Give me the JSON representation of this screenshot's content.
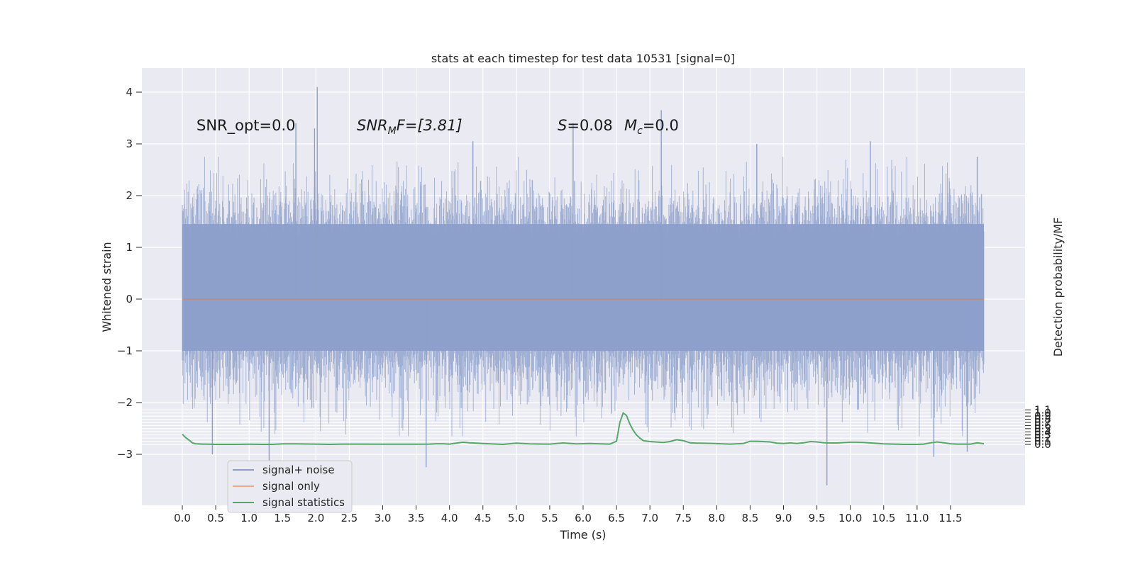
{
  "chart_data": {
    "type": "line",
    "title": "stats at each timestep for test data 10531 [signal=0]",
    "xlabel": "Time (s)",
    "ylabel": "Whitened strain",
    "y2label": "Detection probability/MF",
    "xlim": [
      -0.6,
      12.6
    ],
    "ylim": [
      -4.0,
      4.45
    ],
    "y2lim": [
      -0.2,
      1.195
    ],
    "x_ticks": [
      "0.0",
      "0.5",
      "1.0",
      "1.5",
      "2.0",
      "2.5",
      "3.0",
      "3.5",
      "4.0",
      "4.5",
      "5.0",
      "5.5",
      "6.0",
      "6.5",
      "7.0",
      "7.5",
      "8.0",
      "8.5",
      "9.0",
      "9.5",
      "10.0",
      "10.5",
      "11.0",
      "11.5"
    ],
    "x_tick_values": [
      0.0,
      0.5,
      1.0,
      1.5,
      2.0,
      2.5,
      3.0,
      3.5,
      4.0,
      4.5,
      5.0,
      5.5,
      6.0,
      6.5,
      7.0,
      7.5,
      8.0,
      8.5,
      9.0,
      9.5,
      10.0,
      10.5,
      11.0,
      11.5
    ],
    "y_ticks": [
      "4",
      "3",
      "2",
      "1",
      "0",
      "−1",
      "−2",
      "−3"
    ],
    "y_tick_values": [
      4,
      3,
      2,
      1,
      0,
      -1,
      -2,
      -3
    ],
    "y2_ticks": [
      "1.1",
      "1.0",
      "0.9",
      "0.8",
      "0.7",
      "0.6",
      "0.5",
      "0.4",
      "0.3",
      "0.2",
      "0.1",
      "0.0"
    ],
    "y2_tick_values": [
      1.1,
      1.0,
      0.9,
      0.8,
      0.7,
      0.6,
      0.5,
      0.4,
      0.3,
      0.2,
      0.1,
      0.0
    ],
    "grid": true,
    "legend_position": "lower-left",
    "series": [
      {
        "name": "signal+ noise",
        "axis": "left",
        "color": "#8c9fca",
        "x_range": [
          0.0,
          12.0
        ],
        "envelope_core": [
          -1.0,
          1.45
        ],
        "peaks": [
          {
            "x": 1.7,
            "y": 3.4
          },
          {
            "x": 1.98,
            "y": 3.3
          },
          {
            "x": 2.02,
            "y": 4.1
          },
          {
            "x": 4.35,
            "y": 3.05
          },
          {
            "x": 5.85,
            "y": 3.4
          },
          {
            "x": 7.17,
            "y": 3.65
          },
          {
            "x": 8.6,
            "y": 3.0
          },
          {
            "x": 10.3,
            "y": 3.05
          },
          {
            "x": 11.9,
            "y": 2.75
          },
          {
            "x": 1.3,
            "y": -3.4
          },
          {
            "x": 9.65,
            "y": -3.6
          },
          {
            "x": 3.65,
            "y": -3.25
          },
          {
            "x": 0.45,
            "y": -3.0
          },
          {
            "x": 11.25,
            "y": -3.05
          },
          {
            "x": 11.75,
            "y": -2.95
          }
        ]
      },
      {
        "name": "signal only",
        "axis": "left",
        "color": "#dd8452",
        "x": [
          0.0,
          12.0
        ],
        "y": [
          0.0,
          0.0
        ]
      },
      {
        "name": "signal statistics",
        "axis": "right",
        "color": "#55a868",
        "x": [
          0.0,
          0.05,
          0.1,
          0.15,
          0.2,
          0.3,
          0.35,
          0.5,
          0.8,
          1.0,
          1.2,
          1.35,
          1.5,
          1.7,
          2.0,
          2.2,
          2.4,
          2.6,
          3.0,
          3.2,
          3.5,
          3.7,
          3.8,
          3.9,
          4.0,
          4.1,
          4.2,
          4.3,
          4.5,
          4.8,
          4.9,
          5.0,
          5.2,
          5.5,
          5.7,
          5.9,
          6.1,
          6.4,
          6.5,
          6.55,
          6.6,
          6.65,
          6.7,
          6.75,
          6.8,
          6.85,
          6.9,
          7.0,
          7.2,
          7.3,
          7.4,
          7.5,
          7.6,
          7.7,
          7.8,
          8.0,
          8.2,
          8.4,
          8.5,
          8.6,
          8.8,
          8.9,
          9.0,
          9.1,
          9.2,
          9.3,
          9.4,
          9.5,
          9.6,
          9.7,
          9.8,
          10.0,
          10.1,
          10.2,
          10.5,
          10.8,
          11.0,
          11.1,
          11.2,
          11.3,
          11.4,
          11.5,
          11.6,
          11.8,
          11.9,
          12.0
        ],
        "y": [
          0.32,
          0.22,
          0.14,
          0.05,
          0.02,
          0.01,
          0.01,
          0.0,
          0.0,
          0.005,
          0.0,
          0.0,
          0.015,
          0.015,
          0.01,
          0.0,
          0.01,
          0.01,
          0.005,
          0.005,
          0.005,
          0.01,
          0.02,
          0.02,
          0.01,
          0.04,
          0.07,
          0.05,
          0.03,
          0.0,
          0.02,
          0.04,
          0.015,
          0.01,
          0.045,
          0.015,
          0.03,
          0.01,
          0.1,
          0.7,
          1.0,
          0.92,
          0.65,
          0.45,
          0.3,
          0.2,
          0.12,
          0.09,
          0.06,
          0.09,
          0.15,
          0.12,
          0.05,
          0.04,
          0.035,
          0.025,
          0.01,
          0.03,
          0.1,
          0.1,
          0.08,
          0.04,
          0.03,
          0.045,
          0.03,
          0.05,
          0.09,
          0.08,
          0.055,
          0.045,
          0.045,
          0.07,
          0.07,
          0.06,
          0.015,
          0.0,
          0.0,
          0.01,
          0.05,
          0.08,
          0.05,
          0.02,
          0.01,
          0.01,
          0.05,
          0.02
        ]
      }
    ],
    "annotations": [
      {
        "text": "SNR_opt=0.0",
        "x": 0.2,
        "y": 3.35,
        "axis": "left"
      },
      {
        "text": "SNR_MF=[3.81]",
        "x": 2.6,
        "y": 3.35,
        "axis": "left"
      },
      {
        "text": "S=0.08",
        "x": 5.6,
        "y": 3.35,
        "axis": "left"
      },
      {
        "text": "M_c=0.0",
        "x": 6.6,
        "y": 3.35,
        "axis": "left"
      }
    ]
  },
  "annotation_parts": {
    "snr_opt": "SNR_opt=0.0",
    "snr_mf_main": "SNR",
    "snr_mf_sub": "M",
    "snr_mf_tail": "F=[3.81]",
    "s_main": "S",
    "s_tail": "=0.08",
    "mc_main": "M",
    "mc_sub": "c",
    "mc_tail": "=0.0"
  },
  "colors": {
    "plot_background": "#eaeaf2",
    "grid": "#ffffff",
    "text": "#262626"
  }
}
